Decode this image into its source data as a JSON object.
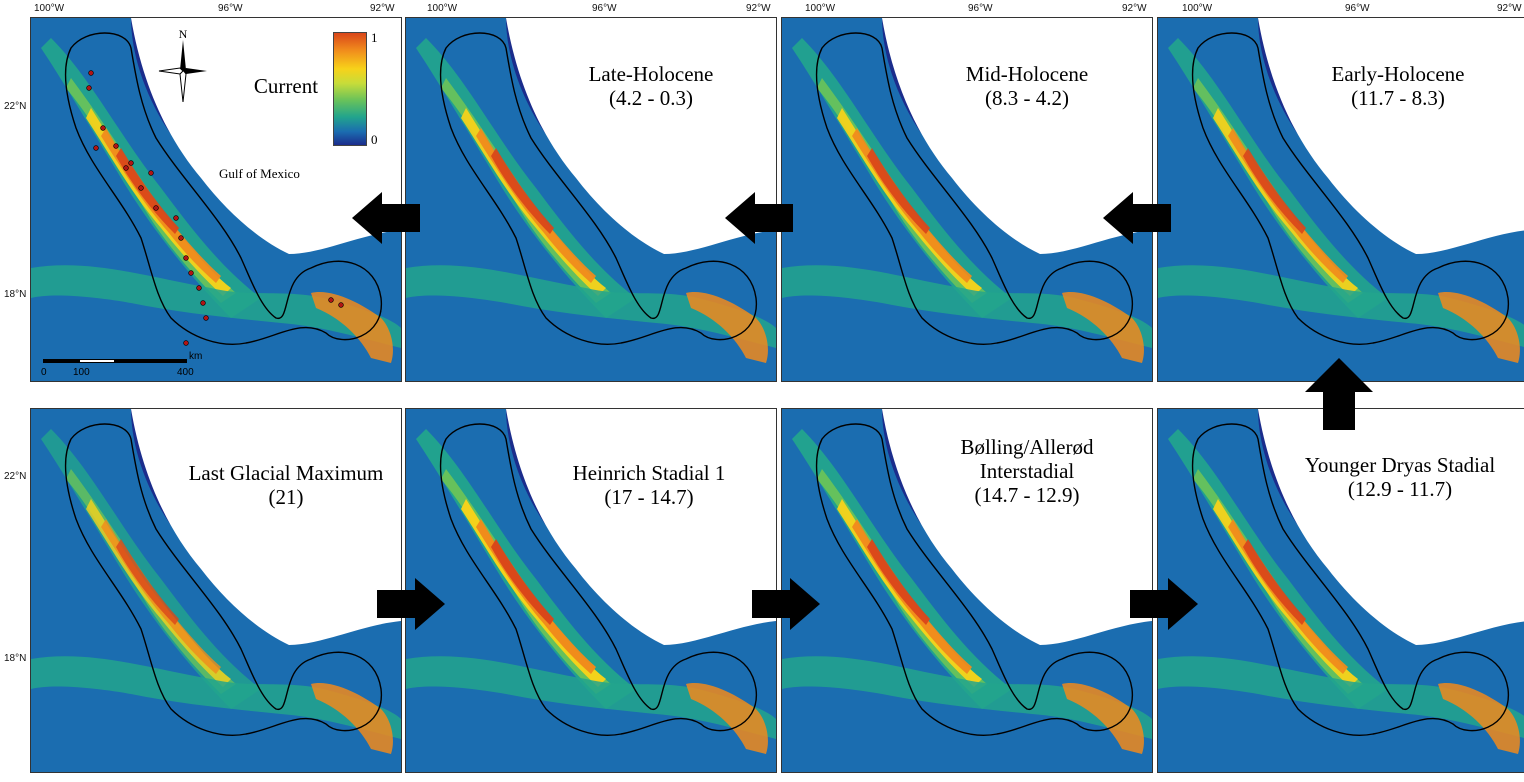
{
  "axis": {
    "lon_labels": [
      "100°W",
      "96°W",
      "92°W"
    ],
    "lat_labels": [
      "22°N",
      "18°N"
    ]
  },
  "colors": {
    "ocean": "#1b2d8c",
    "low": "#1b6db0",
    "mid_low": "#22a48d",
    "mid": "#69c25a",
    "mid_high": "#f7d21a",
    "high": "#f08a1c",
    "peak": "#d9461a",
    "boundary": "#000000",
    "occurrence_dot": "#b01414",
    "arrow": "#000000"
  },
  "panels": [
    {
      "id": "current",
      "title": "Current",
      "subtitle": "",
      "level": 0.85
    },
    {
      "id": "late",
      "title": "Late-Holocene",
      "subtitle": "(4.2 - 0.3)",
      "level": 0.85
    },
    {
      "id": "mid",
      "title": "Mid-Holocene",
      "subtitle": "(8.3 - 4.2)",
      "level": 0.85
    },
    {
      "id": "early",
      "title": "Early-Holocene",
      "subtitle": "(11.7 - 8.3)",
      "level": 0.8
    },
    {
      "id": "lgm",
      "title": "Last Glacial Maximum",
      "subtitle": "(21)",
      "level": 0.55
    },
    {
      "id": "hs1",
      "title": "Heinrich Stadial 1",
      "subtitle": "(17 - 14.7)",
      "level": 0.95
    },
    {
      "id": "ba",
      "title": "Bølling/Allerød",
      "subtitle": "Interstadial",
      "subtitle2": "(14.7 - 12.9)",
      "level": 0.9
    },
    {
      "id": "yd",
      "title": "Younger Dryas Stadial",
      "subtitle": "(12.9 - 11.7)",
      "level": 0.85
    }
  ],
  "labels": {
    "gulf": "Gulf of Mexico",
    "north": "N",
    "legend_max": "1",
    "legend_min": "0",
    "scale_0": "0",
    "scale_100": "100",
    "scale_400": "400",
    "scale_unit": "km"
  },
  "arrows": [
    "left",
    "left",
    "left",
    "up",
    "right",
    "right",
    "right"
  ]
}
